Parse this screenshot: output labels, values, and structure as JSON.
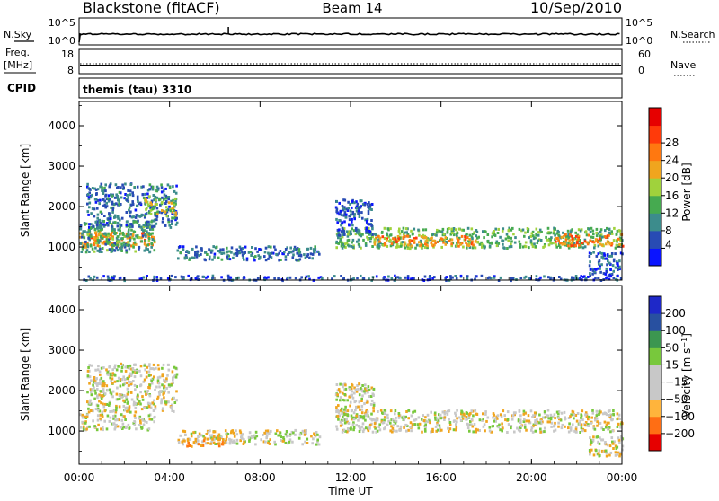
{
  "header": {
    "station": "Blackstone (fitACF)",
    "beam": "Beam 14",
    "date": "10/Sep/2010"
  },
  "noise_panel": {
    "left_label": "N.Sky",
    "left_ticks": [
      "10^5",
      "10^0"
    ],
    "right_label": "N.Search",
    "right_ticks": [
      "10^5",
      "10^0"
    ]
  },
  "freq_panel": {
    "left_label_1": "Freq.",
    "left_label_2": "[MHz]",
    "left_ticks": [
      "18",
      "8"
    ],
    "right_label": "Nave",
    "right_ticks": [
      "60",
      "0"
    ]
  },
  "cpid_panel": {
    "label": "CPID",
    "text": "themis (tau) 3310"
  },
  "colors": {
    "power_scale": [
      "#0a14ff",
      "#284bb4",
      "#3c8c8c",
      "#46aa50",
      "#a0d23c",
      "#f0a51e",
      "#ff7810",
      "#ff3a0a",
      "#e60000"
    ],
    "velocity_scale": [
      "#e60000",
      "#ff6e14",
      "#ffb43c",
      "#c8c8c8",
      "#c8c8c8",
      "#78c83c",
      "#3c9650",
      "#2850a0",
      "#1e28c8"
    ]
  },
  "chart_data": [
    {
      "type": "heatmap",
      "title": "",
      "ylabel": "Slant Range [km]",
      "ylim": [
        180,
        4600
      ],
      "yticks": [
        "1000",
        "2000",
        "3000",
        "4000"
      ],
      "colorbar_label": "Power [dB]",
      "colorbar_ticks": [
        "4",
        "8",
        "12",
        "16",
        "20",
        "24",
        "28"
      ],
      "colorbar_range": [
        0,
        32
      ],
      "regions": [
        {
          "t0": 0.0,
          "t1": 3.3,
          "r0": 1020,
          "r1": 1400,
          "value": 24
        },
        {
          "t0": 0.0,
          "t1": 3.3,
          "r0": 900,
          "r1": 1700,
          "value": 12
        },
        {
          "t0": 0.3,
          "t1": 4.3,
          "r0": 1500,
          "r1": 2600,
          "value": 8
        },
        {
          "t0": 2.8,
          "t1": 4.3,
          "r0": 1800,
          "r1": 2300,
          "value": 18
        },
        {
          "t0": 4.3,
          "t1": 10.6,
          "r0": 700,
          "r1": 1050,
          "value": 8
        },
        {
          "t0": 11.3,
          "t1": 24.0,
          "r0": 1000,
          "r1": 1500,
          "value": 14
        },
        {
          "t0": 13.0,
          "t1": 17.5,
          "r0": 1050,
          "r1": 1300,
          "value": 24
        },
        {
          "t0": 21.0,
          "t1": 24.0,
          "r0": 1050,
          "r1": 1350,
          "value": 26
        },
        {
          "t0": 11.3,
          "t1": 13.0,
          "r0": 1300,
          "r1": 2200,
          "value": 6
        },
        {
          "t0": 22.5,
          "t1": 24.0,
          "r0": 300,
          "r1": 900,
          "value": 6
        },
        {
          "t0": 0.0,
          "t1": 24.0,
          "r0": 200,
          "r1": 320,
          "value": 6
        }
      ]
    },
    {
      "type": "heatmap",
      "title": "",
      "xlabel": "Time UT",
      "xticks": [
        "00:00",
        "04:00",
        "08:00",
        "12:00",
        "16:00",
        "20:00",
        "00:00"
      ],
      "xlim": [
        0,
        24
      ],
      "ylabel": "Slant Range [km]",
      "ylim": [
        180,
        4600
      ],
      "yticks": [
        "1000",
        "2000",
        "3000",
        "4000"
      ],
      "colorbar_label": "Velocity [m s^-1]",
      "colorbar_ticks": [
        "200",
        "100",
        "50",
        "15",
        "-15",
        "-50",
        "-100",
        "-200"
      ],
      "regions": [
        {
          "t0": 0.0,
          "t1": 3.3,
          "r0": 1050,
          "r1": 1450,
          "value": 0
        },
        {
          "t0": 0.3,
          "t1": 4.3,
          "r0": 1500,
          "r1": 2700,
          "value": 0
        },
        {
          "t0": 4.3,
          "t1": 10.6,
          "r0": 700,
          "r1": 1050,
          "value": 0
        },
        {
          "t0": 4.5,
          "t1": 6.5,
          "r0": 650,
          "r1": 850,
          "value": -40
        },
        {
          "t0": 11.3,
          "t1": 24.0,
          "r0": 1000,
          "r1": 1550,
          "value": 0
        },
        {
          "t0": 11.3,
          "t1": 13.0,
          "r0": 1300,
          "r1": 2200,
          "value": 0
        },
        {
          "t0": 22.5,
          "t1": 24.0,
          "r0": 400,
          "r1": 900,
          "value": 0
        }
      ]
    }
  ]
}
